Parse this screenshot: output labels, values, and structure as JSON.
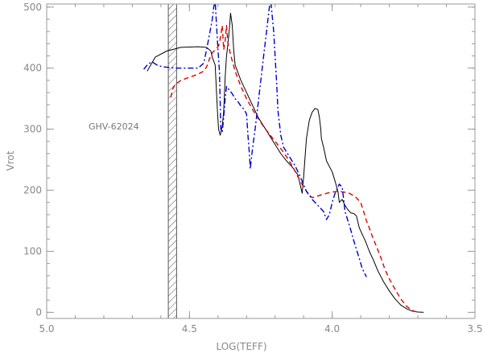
{
  "chart_data": {
    "type": "line",
    "title": "",
    "xlabel": "LOG(TEFF)",
    "ylabel": "Vrot",
    "xlim": [
      5.0,
      3.5
    ],
    "ylim": [
      -10,
      505
    ],
    "x_ticks": [
      "5.0",
      "4.5",
      "4.0",
      "3.5"
    ],
    "x_tick_values": [
      5.0,
      4.5,
      4.0,
      3.5
    ],
    "y_ticks": [
      "0",
      "100",
      "200",
      "300",
      "400",
      "500"
    ],
    "y_tick_values": [
      0,
      100,
      200,
      300,
      400,
      500
    ],
    "grid": false,
    "annotation": "GHV-62024",
    "annotation_position": [
      4.86,
      303
    ],
    "hatched_band": [
      4.574,
      4.545
    ],
    "series": [
      {
        "color": "#000000",
        "style": "solid",
        "points": [
          [
            4.648,
            395
          ],
          [
            4.62,
            418
          ],
          [
            4.58,
            428
          ],
          [
            4.53,
            434
          ],
          [
            4.47,
            435
          ],
          [
            4.44,
            434
          ],
          [
            4.425,
            428
          ],
          [
            4.42,
            418
          ],
          [
            4.41,
            405
          ],
          [
            4.405,
            360
          ],
          [
            4.402,
            330
          ],
          [
            4.398,
            300
          ],
          [
            4.392,
            290
          ],
          [
            4.385,
            305
          ],
          [
            4.38,
            330
          ],
          [
            4.375,
            385
          ],
          [
            4.37,
            420
          ],
          [
            4.365,
            440
          ],
          [
            4.36,
            465
          ],
          [
            4.356,
            490
          ],
          [
            4.35,
            470
          ],
          [
            4.345,
            430
          ],
          [
            4.34,
            405
          ],
          [
            4.32,
            380
          ],
          [
            4.3,
            360
          ],
          [
            4.28,
            340
          ],
          [
            4.26,
            320
          ],
          [
            4.24,
            305
          ],
          [
            4.22,
            290
          ],
          [
            4.2,
            275
          ],
          [
            4.18,
            260
          ],
          [
            4.16,
            248
          ],
          [
            4.14,
            238
          ],
          [
            4.12,
            225
          ],
          [
            4.105,
            195
          ],
          [
            4.1,
            222
          ],
          [
            4.095,
            255
          ],
          [
            4.09,
            285
          ],
          [
            4.08,
            315
          ],
          [
            4.07,
            328
          ],
          [
            4.06,
            334
          ],
          [
            4.05,
            332
          ],
          [
            4.045,
            320
          ],
          [
            4.04,
            300
          ],
          [
            4.038,
            285
          ],
          [
            4.03,
            270
          ],
          [
            4.02,
            248
          ],
          [
            4.0,
            230
          ],
          [
            3.99,
            215
          ],
          [
            3.98,
            198
          ],
          [
            3.975,
            180
          ],
          [
            3.965,
            185
          ],
          [
            3.955,
            175
          ],
          [
            3.945,
            168
          ],
          [
            3.935,
            163
          ],
          [
            3.925,
            162
          ],
          [
            3.915,
            158
          ],
          [
            3.905,
            138
          ],
          [
            3.895,
            128
          ],
          [
            3.885,
            118
          ],
          [
            3.87,
            100
          ],
          [
            3.855,
            85
          ],
          [
            3.84,
            68
          ],
          [
            3.82,
            50
          ],
          [
            3.8,
            35
          ],
          [
            3.78,
            22
          ],
          [
            3.76,
            12
          ],
          [
            3.74,
            6
          ],
          [
            3.72,
            2
          ],
          [
            3.7,
            0.5
          ],
          [
            3.68,
            0
          ]
        ]
      },
      {
        "color": "#dd0000",
        "style": "dashed",
        "points": [
          [
            4.565,
            352
          ],
          [
            4.56,
            365
          ],
          [
            4.55,
            373
          ],
          [
            4.53,
            380
          ],
          [
            4.5,
            385
          ],
          [
            4.47,
            390
          ],
          [
            4.45,
            395
          ],
          [
            4.44,
            402
          ],
          [
            4.43,
            415
          ],
          [
            4.42,
            425
          ],
          [
            4.41,
            430
          ],
          [
            4.4,
            435
          ],
          [
            4.395,
            440
          ],
          [
            4.39,
            455
          ],
          [
            4.385,
            470
          ],
          [
            4.38,
            430
          ],
          [
            4.375,
            445
          ],
          [
            4.37,
            470
          ],
          [
            4.365,
            440
          ],
          [
            4.355,
            420
          ],
          [
            4.34,
            395
          ],
          [
            4.32,
            370
          ],
          [
            4.3,
            350
          ],
          [
            4.28,
            333
          ],
          [
            4.26,
            318
          ],
          [
            4.24,
            304
          ],
          [
            4.22,
            292
          ],
          [
            4.2,
            280
          ],
          [
            4.18,
            268
          ],
          [
            4.16,
            255
          ],
          [
            4.14,
            240
          ],
          [
            4.12,
            222
          ],
          [
            4.1,
            205
          ],
          [
            4.08,
            192
          ],
          [
            4.07,
            188
          ],
          [
            4.06,
            189
          ],
          [
            4.04,
            192
          ],
          [
            4.02,
            195
          ],
          [
            4.0,
            197
          ],
          [
            3.98,
            198
          ],
          [
            3.96,
            197
          ],
          [
            3.94,
            195
          ],
          [
            3.92,
            190
          ],
          [
            3.9,
            180
          ],
          [
            3.89,
            165
          ],
          [
            3.88,
            150
          ],
          [
            3.87,
            138
          ],
          [
            3.86,
            125
          ],
          [
            3.845,
            108
          ],
          [
            3.83,
            90
          ],
          [
            3.815,
            70
          ],
          [
            3.8,
            55
          ],
          [
            3.78,
            38
          ],
          [
            3.76,
            22
          ],
          [
            3.74,
            10
          ],
          [
            3.72,
            3
          ],
          [
            3.7,
            0
          ]
        ]
      },
      {
        "color": "#0000cc",
        "style": "dashdot",
        "points": [
          [
            4.66,
            398
          ],
          [
            4.65,
            404
          ],
          [
            4.64,
            408
          ],
          [
            4.63,
            410
          ],
          [
            4.61,
            404
          ],
          [
            4.59,
            402
          ],
          [
            4.55,
            400
          ],
          [
            4.5,
            400
          ],
          [
            4.47,
            400
          ],
          [
            4.45,
            408
          ],
          [
            4.44,
            430
          ],
          [
            4.43,
            455
          ],
          [
            4.42,
            480
          ],
          [
            4.415,
            500
          ],
          [
            4.41,
            510
          ],
          [
            4.405,
            470
          ],
          [
            4.4,
            430
          ],
          [
            4.395,
            395
          ],
          [
            4.392,
            340
          ],
          [
            4.39,
            300
          ],
          [
            4.385,
            295
          ],
          [
            4.38,
            320
          ],
          [
            4.375,
            350
          ],
          [
            4.37,
            370
          ],
          [
            4.35,
            358
          ],
          [
            4.34,
            350
          ],
          [
            4.33,
            345
          ],
          [
            4.32,
            338
          ],
          [
            4.31,
            333
          ],
          [
            4.3,
            325
          ],
          [
            4.295,
            290
          ],
          [
            4.29,
            260
          ],
          [
            4.287,
            235
          ],
          [
            4.28,
            265
          ],
          [
            4.27,
            300
          ],
          [
            4.26,
            340
          ],
          [
            4.25,
            380
          ],
          [
            4.24,
            420
          ],
          [
            4.23,
            460
          ],
          [
            4.22,
            500
          ],
          [
            4.215,
            510
          ],
          [
            4.205,
            460
          ],
          [
            4.2,
            420
          ],
          [
            4.195,
            380
          ],
          [
            4.19,
            330
          ],
          [
            4.18,
            290
          ],
          [
            4.17,
            270
          ],
          [
            4.15,
            255
          ],
          [
            4.13,
            240
          ],
          [
            4.11,
            220
          ],
          [
            4.09,
            198
          ],
          [
            4.07,
            185
          ],
          [
            4.05,
            175
          ],
          [
            4.03,
            165
          ],
          [
            4.02,
            152
          ],
          [
            4.01,
            160
          ],
          [
            4.0,
            180
          ],
          [
            3.99,
            195
          ],
          [
            3.98,
            205
          ],
          [
            3.975,
            210
          ],
          [
            3.965,
            205
          ],
          [
            3.96,
            185
          ],
          [
            3.955,
            165
          ],
          [
            3.945,
            150
          ],
          [
            3.935,
            135
          ],
          [
            3.925,
            118
          ],
          [
            3.915,
            103
          ],
          [
            3.905,
            88
          ],
          [
            3.895,
            72
          ],
          [
            3.88,
            58
          ]
        ]
      }
    ]
  }
}
